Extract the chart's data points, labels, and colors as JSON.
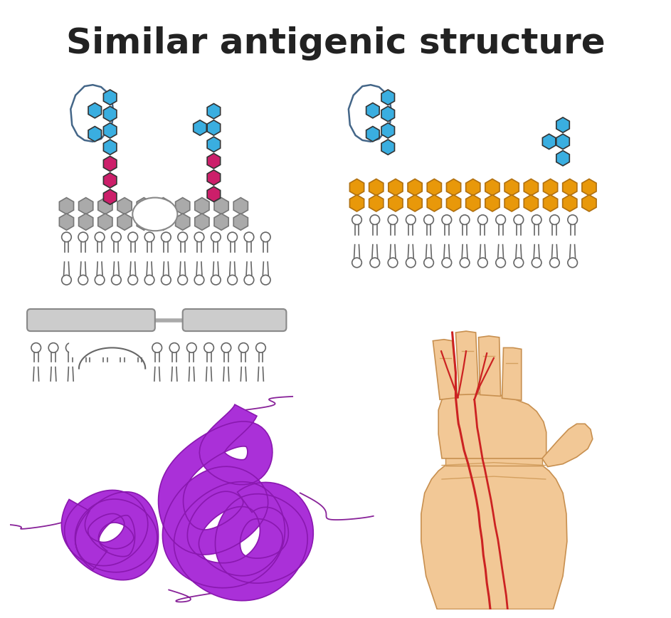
{
  "title": "Similar antigenic structure",
  "title_fontsize": 36,
  "title_color": "#222222",
  "bg_color": "#ffffff",
  "blue_color": "#3aaee0",
  "pink_color": "#cc1f6a",
  "orange_color": "#e8980a",
  "gray_color": "#aaaaaa",
  "gray_edge": "#777777",
  "purple_color": "#aa30d8",
  "purple_dark": "#8a18b0",
  "purple_flagella": "#882299",
  "skin_color": "#f2c896",
  "skin_dark": "#d4a060",
  "skin_edge": "#c89050",
  "red_color": "#cc2222",
  "line_color": "#666666",
  "blob_edge": "#446688"
}
